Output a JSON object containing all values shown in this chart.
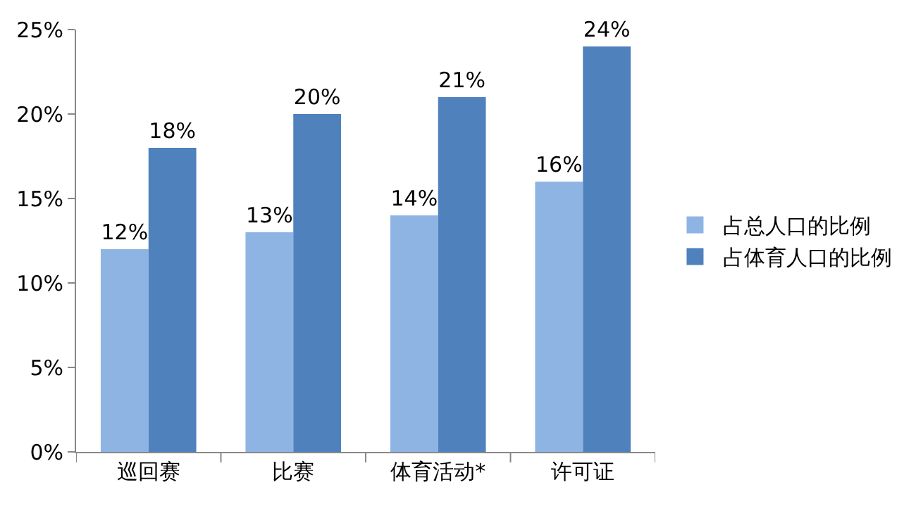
{
  "chart_data": {
    "type": "bar",
    "categories": [
      "巡回赛",
      "比赛",
      "体育活动*",
      "许可证"
    ],
    "series": [
      {
        "name": "占总人口的比例",
        "color": "#8eb4e3",
        "values": [
          12,
          13,
          14,
          16
        ],
        "value_labels": [
          "12%",
          "13%",
          "14%",
          "16%"
        ]
      },
      {
        "name": "占体育人口的比例",
        "color": "#4f81bd",
        "values": [
          18,
          20,
          21,
          24
        ],
        "value_labels": [
          "18%",
          "20%",
          "21%",
          "24%"
        ]
      }
    ],
    "ylim": [
      0,
      25
    ],
    "yticks": [
      {
        "value": 0,
        "label": "0%"
      },
      {
        "value": 5,
        "label": "5%"
      },
      {
        "value": 10,
        "label": "10%"
      },
      {
        "value": 15,
        "label": "15%"
      },
      {
        "value": 20,
        "label": "20%"
      },
      {
        "value": 25,
        "label": "25%"
      }
    ],
    "grid": false,
    "legend": "right"
  }
}
